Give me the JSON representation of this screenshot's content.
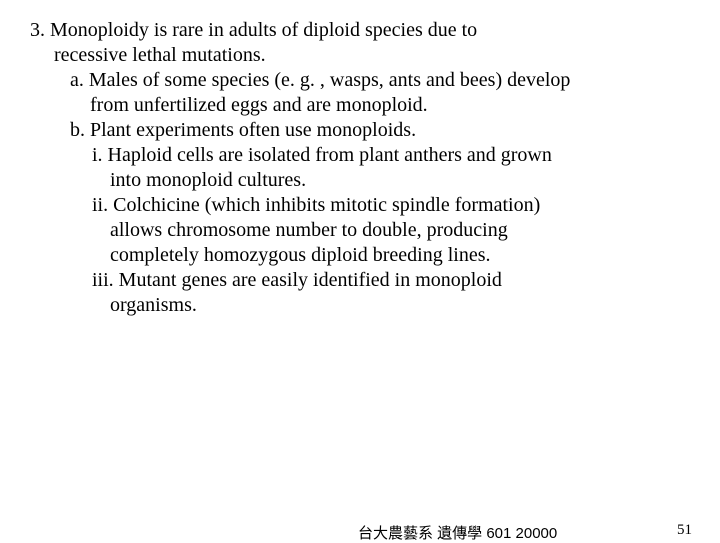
{
  "outline": {
    "item3": {
      "line1": "3. Monoploidy is rare in adults of diploid species due to",
      "line2": "recessive lethal mutations.",
      "a": {
        "line1": "a. Males of some species (e. g. , wasps, ants and bees) develop",
        "line2": "from unfertilized eggs and are monoploid."
      },
      "b": {
        "line1": "b. Plant experiments often use monoploids.",
        "i": {
          "line1": "i. Haploid cells are isolated from plant anthers and grown",
          "line2": "into monoploid cultures."
        },
        "ii": {
          "line1": "ii. Colchicine (which inhibits mitotic spindle formation)",
          "line2": "allows chromosome number to double, producing",
          "line3": "completely homozygous diploid breeding lines."
        },
        "iii": {
          "line1": "iii. Mutant genes are easily identified in monoploid",
          "line2": "organisms."
        }
      }
    }
  },
  "footer": {
    "text": "台大農藝系 遺傳學 601 20000",
    "page": "51"
  }
}
